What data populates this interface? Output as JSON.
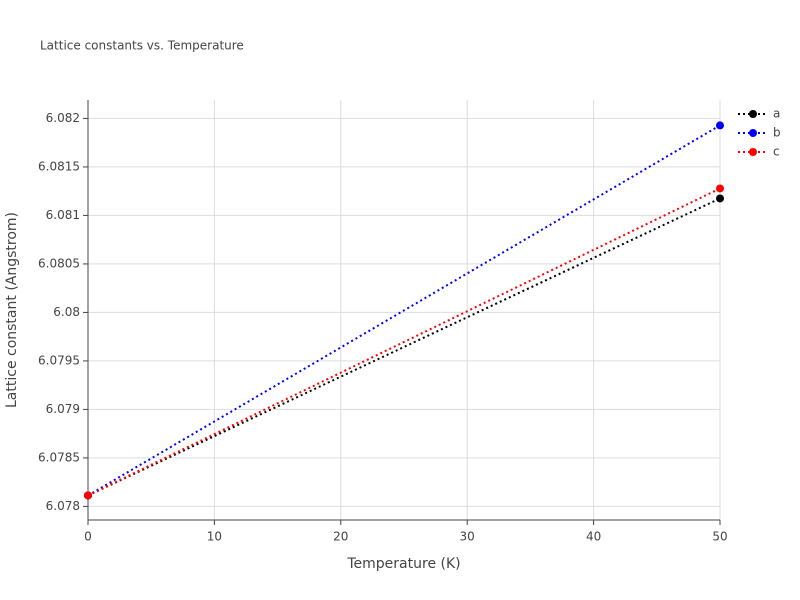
{
  "chart_data": {
    "type": "line",
    "title": "Lattice constants vs. Temperature",
    "x_label": "Temperature (K)",
    "y_label": "Lattice constant (Angstrom)",
    "x": [
      0,
      50
    ],
    "series": [
      {
        "name": "a",
        "color": "#000000",
        "values": [
          6.078113,
          6.081175
        ]
      },
      {
        "name": "b",
        "color": "#0000ff",
        "values": [
          6.078113,
          6.081928
        ]
      },
      {
        "name": "c",
        "color": "#ff0000",
        "values": [
          6.078113,
          6.081278
        ]
      }
    ],
    "xlim": [
      0,
      50
    ],
    "xticks": [
      0,
      10,
      20,
      30,
      40,
      50
    ],
    "ylim": [
      6.07786,
      6.08219
    ],
    "yticks": [
      6.078,
      6.0785,
      6.079,
      6.0795,
      6.08,
      6.0805,
      6.081,
      6.0815,
      6.082
    ],
    "grid": true,
    "legend": "top-right",
    "line_style": "dotted"
  }
}
